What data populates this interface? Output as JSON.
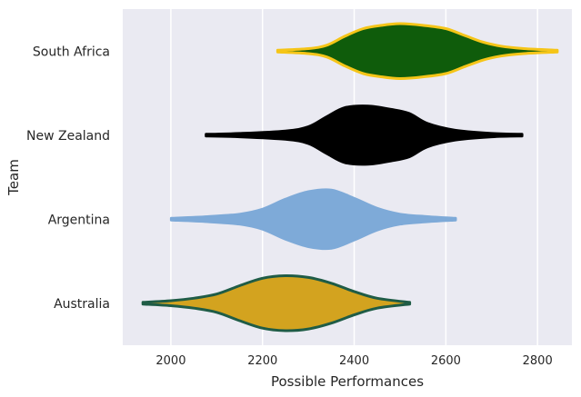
{
  "chart_data": {
    "type": "violin",
    "orientation": "horizontal",
    "xlabel": "Possible Performances",
    "ylabel": "Team",
    "xlim": [
      1895,
      2875
    ],
    "xticks": [
      2000,
      2200,
      2400,
      2600,
      2800
    ],
    "grid": "vertical",
    "categories": [
      "South Africa",
      "New Zealand",
      "Argentina",
      "Australia"
    ],
    "series": [
      {
        "name": "South Africa",
        "fill": "#0f5c0b",
        "edge": "#f5c518",
        "range": [
          2233,
          2843
        ],
        "profile": [
          [
            2233,
            0.01
          ],
          [
            2300,
            0.03
          ],
          [
            2340,
            0.07
          ],
          [
            2380,
            0.18
          ],
          [
            2420,
            0.27
          ],
          [
            2460,
            0.31
          ],
          [
            2500,
            0.33
          ],
          [
            2550,
            0.31
          ],
          [
            2600,
            0.27
          ],
          [
            2640,
            0.19
          ],
          [
            2680,
            0.11
          ],
          [
            2720,
            0.06
          ],
          [
            2770,
            0.03
          ],
          [
            2843,
            0.01
          ]
        ]
      },
      {
        "name": "New Zealand",
        "fill": "#000000",
        "edge": "#000000",
        "range": [
          2077,
          2766
        ],
        "profile": [
          [
            2077,
            0.01
          ],
          [
            2150,
            0.02
          ],
          [
            2250,
            0.05
          ],
          [
            2300,
            0.1
          ],
          [
            2340,
            0.22
          ],
          [
            2380,
            0.33
          ],
          [
            2430,
            0.35
          ],
          [
            2480,
            0.31
          ],
          [
            2520,
            0.26
          ],
          [
            2560,
            0.14
          ],
          [
            2620,
            0.06
          ],
          [
            2700,
            0.02
          ],
          [
            2766,
            0.01
          ]
        ]
      },
      {
        "name": "Argentina",
        "fill": "#7eaad8",
        "edge": "#7eaad8",
        "range": [
          2001,
          2621
        ],
        "profile": [
          [
            2001,
            0.01
          ],
          [
            2080,
            0.03
          ],
          [
            2150,
            0.06
          ],
          [
            2200,
            0.12
          ],
          [
            2250,
            0.24
          ],
          [
            2300,
            0.33
          ],
          [
            2350,
            0.35
          ],
          [
            2400,
            0.25
          ],
          [
            2450,
            0.13
          ],
          [
            2500,
            0.06
          ],
          [
            2560,
            0.03
          ],
          [
            2621,
            0.01
          ]
        ]
      },
      {
        "name": "Australia",
        "fill": "#d3a31f",
        "edge": "#1f5c46",
        "range": [
          1939,
          2521
        ],
        "profile": [
          [
            1939,
            0.01
          ],
          [
            2000,
            0.03
          ],
          [
            2050,
            0.06
          ],
          [
            2100,
            0.11
          ],
          [
            2150,
            0.21
          ],
          [
            2200,
            0.3
          ],
          [
            2250,
            0.33
          ],
          [
            2300,
            0.31
          ],
          [
            2350,
            0.24
          ],
          [
            2400,
            0.14
          ],
          [
            2450,
            0.06
          ],
          [
            2521,
            0.01
          ]
        ]
      }
    ]
  }
}
